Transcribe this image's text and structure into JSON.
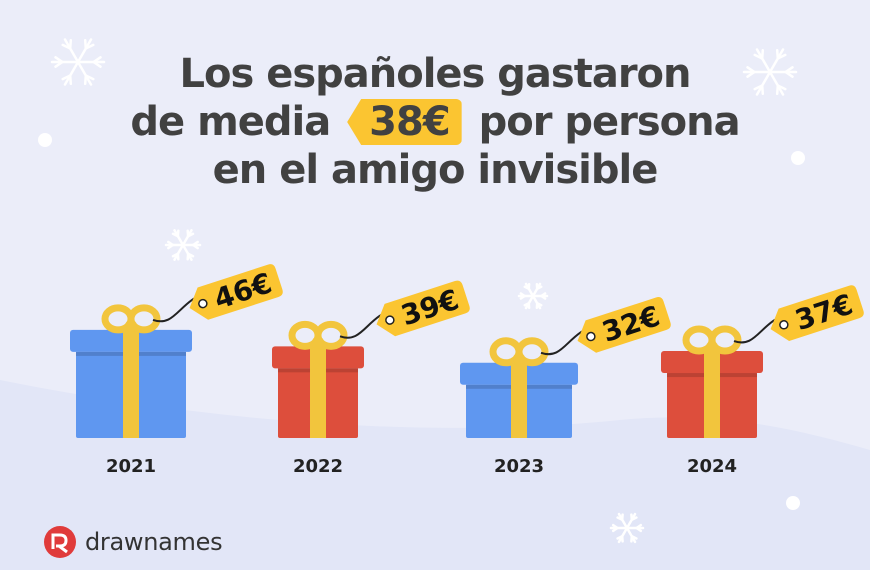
{
  "title": {
    "line1": "Los españoles gastaron",
    "line2_before": "de media",
    "highlight": "38€",
    "line2_after": "por persona",
    "line3": "en el amigo invisible"
  },
  "brand": {
    "name": "drawnames",
    "icon": "drawnames-logo-icon"
  },
  "colors": {
    "background": "#ebedf9",
    "tag": "#fbc531",
    "ribbon": "#f2c53d",
    "gift_blue": "#5f97f0",
    "gift_red": "#dd4e3c"
  },
  "chart_data": {
    "type": "bar",
    "categories": [
      "2021",
      "2022",
      "2023",
      "2024"
    ],
    "values": [
      46,
      39,
      32,
      37
    ],
    "value_labels": [
      "46€",
      "39€",
      "32€",
      "37€"
    ],
    "gift_colors": [
      "blue",
      "red",
      "blue",
      "red"
    ],
    "average": 38,
    "unit": "€"
  }
}
